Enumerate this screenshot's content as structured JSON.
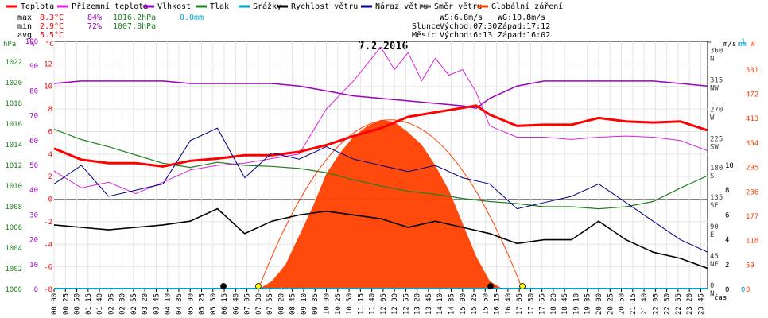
{
  "legend": [
    {
      "label": "Teplota",
      "color": "#ff0000"
    },
    {
      "label": "Přízemní teplota",
      "color": "#e020e0"
    },
    {
      "label": "Vlhkost",
      "color": "#9a00c0"
    },
    {
      "label": "Tlak",
      "color": "#208020"
    },
    {
      "label": "Srážky",
      "color": "#00a0c8"
    },
    {
      "label": "Rychlost větru",
      "color": "#000000"
    },
    {
      "label": "Náraz větru",
      "color": "#000080"
    },
    {
      "label": "Směr větru",
      "color": "#606060"
    },
    {
      "label": "Globální záření",
      "color": "#ff4000"
    }
  ],
  "stats": {
    "max": {
      "label": "max",
      "temp": "8.3°C",
      "hum": "84%",
      "press": "1016.2hPa",
      "rain": "0.0mm"
    },
    "min": {
      "label": "min",
      "temp": "2.9°C",
      "hum": "72%",
      "press": "1007.8hPa"
    },
    "avg": {
      "label": "avg",
      "temp": "5.5°C"
    }
  },
  "wind_stats": {
    "ws": "WS:6.8m/s",
    "wg": "WG:10.8m/s"
  },
  "sun": {
    "label": "Slunce",
    "rise": "Východ:07:30",
    "set": "Západ:17:12"
  },
  "moon": {
    "label": "Měsíc",
    "rise": "Východ:6:13",
    "set": "Západ:16:02"
  },
  "chart_data": {
    "type": "line",
    "title": "7.2.2016",
    "xlabel": "čas",
    "x_ticks": [
      "00:00",
      "00:25",
      "00:50",
      "01:15",
      "01:40",
      "02:05",
      "02:30",
      "02:55",
      "03:20",
      "03:45",
      "04:10",
      "04:35",
      "05:00",
      "05:25",
      "05:50",
      "06:15",
      "06:40",
      "07:05",
      "07:30",
      "07:55",
      "08:20",
      "08:45",
      "09:10",
      "09:35",
      "10:00",
      "10:25",
      "10:50",
      "11:15",
      "11:40",
      "12:05",
      "12:30",
      "12:55",
      "13:20",
      "13:45",
      "14:10",
      "14:35",
      "15:00",
      "15:25",
      "15:50",
      "16:15",
      "16:40",
      "17:05",
      "17:30",
      "17:55",
      "18:20",
      "18:45",
      "19:10",
      "19:35",
      "20:00",
      "20:25",
      "20:50",
      "21:15",
      "21:40",
      "22:05",
      "22:30",
      "22:55",
      "23:20",
      "23:45"
    ],
    "axes": {
      "pressure": {
        "label": "hPa",
        "color": "#208020",
        "ticks": [
          "1000",
          "1002",
          "1004",
          "1006",
          "1008",
          "1010",
          "1012",
          "1014",
          "1016",
          "1018",
          "1020",
          "1022"
        ],
        "range": [
          1000,
          1024
        ]
      },
      "humidity": {
        "label": "%",
        "color": "#9a00c0",
        "ticks": [
          "0",
          "10",
          "20",
          "30",
          "40",
          "50",
          "60",
          "70",
          "80",
          "90",
          "100"
        ],
        "range": [
          0,
          100
        ]
      },
      "temperature": {
        "label": "°C",
        "color": "#ff0000",
        "ticks": [
          "-8",
          "-6",
          "-4",
          "-2",
          "0",
          "2",
          "4",
          "6",
          "8",
          "10",
          "12"
        ],
        "range": [
          -8,
          14
        ]
      },
      "direction": {
        "label": "°",
        "color": "#404040",
        "ticks": [
          {
            "v": "0",
            "d": "N"
          },
          {
            "v": "45",
            "d": "NE"
          },
          {
            "v": "90",
            "d": "E"
          },
          {
            "v": "135",
            "d": "SE"
          },
          {
            "v": "180",
            "d": "S"
          },
          {
            "v": "225",
            "d": "SW"
          },
          {
            "v": "270",
            "d": "W"
          },
          {
            "v": "315",
            "d": "NW"
          },
          {
            "v": "360",
            "d": "N"
          }
        ],
        "range": [
          0,
          380
        ]
      },
      "wind": {
        "label": "m/s",
        "color": "#000000",
        "ticks": [
          "0",
          "2",
          "4",
          "6",
          "8",
          "10"
        ],
        "range": [
          0,
          20
        ]
      },
      "rain": {
        "label": "mm",
        "color": "#00a0c8",
        "ticks": [
          "0",
          "1"
        ],
        "range": [
          0,
          1
        ]
      },
      "radiation": {
        "label": "W",
        "color": "#ff4000",
        "ticks": [
          "0",
          "59",
          "118",
          "177",
          "236",
          "295",
          "354",
          "413",
          "472",
          "531"
        ],
        "range": [
          0,
          600
        ]
      }
    },
    "series": [
      {
        "name": "Teplota",
        "axis": "temperature",
        "hours": [
          0,
          1,
          2,
          3,
          4,
          5,
          6,
          7,
          8,
          9,
          10,
          11,
          12,
          13,
          14,
          15,
          15.5,
          16,
          17,
          18,
          19,
          20,
          21,
          22,
          23,
          24
        ],
        "values": [
          4.5,
          3.5,
          3.2,
          3.2,
          2.9,
          3.4,
          3.6,
          3.9,
          3.9,
          4.2,
          4.8,
          5.6,
          6.3,
          7.3,
          7.7,
          8.1,
          8.3,
          7.5,
          6.5,
          6.6,
          6.6,
          7.2,
          6.9,
          6.8,
          6.9,
          6.1
        ]
      },
      {
        "name": "Přízemní teplota",
        "axis": "temperature",
        "hours": [
          0,
          1,
          2,
          3,
          4,
          5,
          6,
          7,
          8,
          9,
          10,
          11,
          11.5,
          12,
          12.5,
          13,
          13.5,
          14,
          14.5,
          15,
          15.5,
          16,
          17,
          18,
          19,
          20,
          21,
          22,
          23,
          24
        ],
        "values": [
          2.5,
          1.0,
          1.5,
          0.5,
          1.5,
          2.6,
          3.0,
          3.2,
          3.6,
          4.0,
          8.0,
          10.5,
          12.0,
          13.5,
          11.5,
          13.0,
          10.5,
          12.5,
          11.0,
          11.5,
          9.5,
          6.5,
          5.5,
          5.5,
          5.3,
          5.5,
          5.6,
          5.5,
          5.2,
          4.3
        ]
      },
      {
        "name": "Vlhkost",
        "axis": "humidity",
        "hours": [
          0,
          1,
          2,
          3,
          4,
          5,
          6,
          7,
          8,
          9,
          10,
          11,
          12,
          13,
          14,
          15,
          15.5,
          16,
          17,
          18,
          19,
          20,
          21,
          22,
          23,
          24
        ],
        "values": [
          83,
          84,
          84,
          84,
          84,
          83,
          83,
          83,
          83,
          82,
          80,
          78,
          77,
          76,
          75,
          74,
          73,
          77,
          82,
          84,
          84,
          84,
          84,
          84,
          83,
          82
        ]
      },
      {
        "name": "Tlak",
        "axis": "pressure",
        "hours": [
          0,
          1,
          2,
          3,
          4,
          5,
          6,
          7,
          8,
          9,
          10,
          11,
          12,
          13,
          14,
          15,
          16,
          17,
          18,
          19,
          20,
          21,
          22,
          23,
          24
        ],
        "values": [
          1015.5,
          1014.5,
          1013.8,
          1013.0,
          1012.2,
          1011.8,
          1012.3,
          1012.0,
          1011.9,
          1011.7,
          1011.3,
          1010.6,
          1010.0,
          1009.5,
          1009.2,
          1008.8,
          1008.5,
          1008.3,
          1008.0,
          1008.0,
          1007.8,
          1008.0,
          1008.5,
          1009.8,
          1011.0
        ]
      },
      {
        "name": "Rychlost větru",
        "axis": "wind",
        "hours": [
          0,
          1,
          2,
          3,
          4,
          5,
          6,
          7,
          8,
          9,
          10,
          11,
          12,
          13,
          14,
          15,
          16,
          17,
          18,
          19,
          20,
          21,
          22,
          23,
          24
        ],
        "values": [
          5.2,
          5.0,
          4.8,
          5.0,
          5.2,
          5.5,
          6.5,
          4.5,
          5.5,
          6.0,
          6.3,
          6.0,
          5.7,
          5.0,
          5.5,
          5.0,
          4.5,
          3.7,
          4.0,
          4.0,
          5.5,
          4.0,
          3.0,
          2.5,
          1.7
        ]
      },
      {
        "name": "Náraz větru",
        "axis": "wind",
        "hours": [
          0,
          1,
          2,
          3,
          4,
          5,
          6,
          7,
          8,
          9,
          10,
          11,
          12,
          13,
          14,
          15,
          16,
          17,
          18,
          19,
          20,
          21,
          22,
          23,
          24
        ],
        "values": [
          8.5,
          10.0,
          7.5,
          8.0,
          8.5,
          12.0,
          13.0,
          9.0,
          11.0,
          10.5,
          11.5,
          10.5,
          10.0,
          9.5,
          10.0,
          9.0,
          8.5,
          6.5,
          7.0,
          7.5,
          8.5,
          7.0,
          5.5,
          4.0,
          3.0
        ]
      },
      {
        "name": "Globální záření",
        "axis": "radiation",
        "hours": [
          7.5,
          8,
          8.5,
          9,
          9.5,
          10,
          10.5,
          11,
          11.5,
          12,
          12.5,
          13,
          13.5,
          14,
          14.5,
          15,
          15.5,
          16,
          16.5
        ],
        "values": [
          0,
          20,
          60,
          130,
          200,
          280,
          330,
          370,
          395,
          410,
          405,
          380,
          350,
          300,
          240,
          160,
          80,
          20,
          0
        ]
      }
    ],
    "markers": [
      {
        "name": "moonrise",
        "hour": 6.22,
        "color": "#000000"
      },
      {
        "name": "sunrise",
        "hour": 7.5,
        "color": "#ffff00"
      },
      {
        "name": "moonset",
        "hour": 16.03,
        "color": "#000000"
      },
      {
        "name": "sunset",
        "hour": 17.2,
        "color": "#ffff00"
      }
    ],
    "grid": true
  }
}
